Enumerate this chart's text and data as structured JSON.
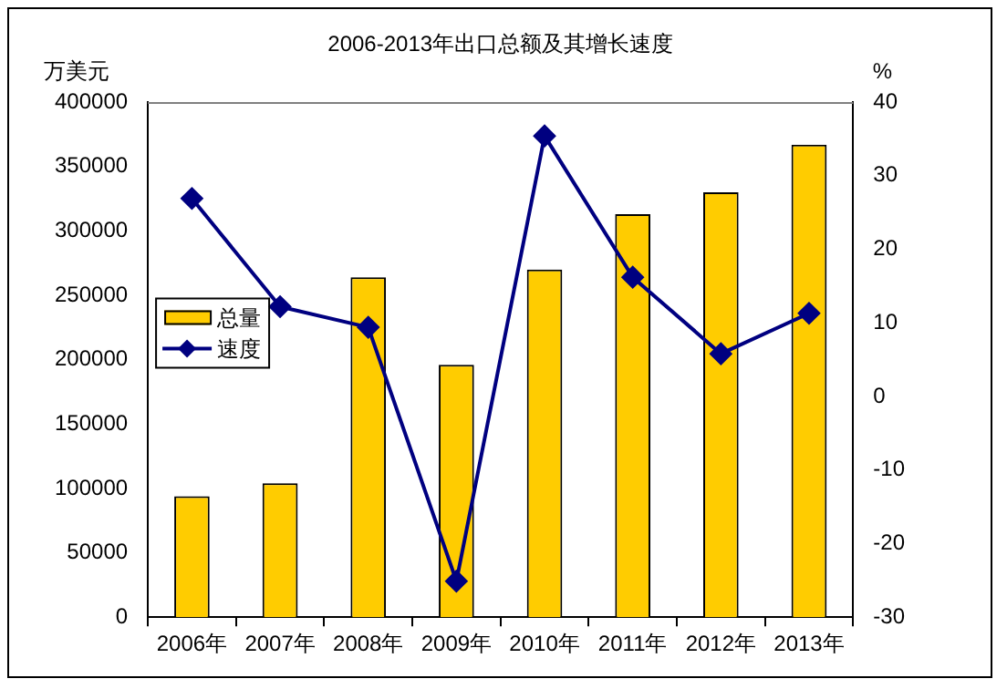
{
  "chart_data": {
    "type": "bar",
    "title": "2006-2013年出口总额及其增长速度",
    "ylabel": "万美元",
    "y2label": "%",
    "categories": [
      "2006年",
      "2007年",
      "2008年",
      "2009年",
      "2010年",
      "2011年",
      "2012年",
      "2013年"
    ],
    "series": [
      {
        "name": "总量",
        "color": "#ffcc00",
        "values": [
          94000,
          104000,
          264000,
          196000,
          270000,
          313000,
          330000,
          367000
        ]
      },
      {
        "name": "速度",
        "type": "line",
        "axis": "y2",
        "color": "#000080",
        "values": [
          26.9,
          12.2,
          9.4,
          -25.1,
          35.4,
          16.2,
          5.8,
          11.3
        ]
      }
    ],
    "ylim": [
      0,
      400000
    ],
    "yticks": [
      0,
      50000,
      100000,
      150000,
      200000,
      250000,
      300000,
      350000,
      400000
    ],
    "y2lim": [
      -30,
      40
    ],
    "y2ticks": [
      -30,
      -20,
      -10,
      0,
      10,
      20,
      30,
      40
    ],
    "grid": false,
    "legend": "left",
    "marker": "diamond",
    "line_style": "solid"
  }
}
